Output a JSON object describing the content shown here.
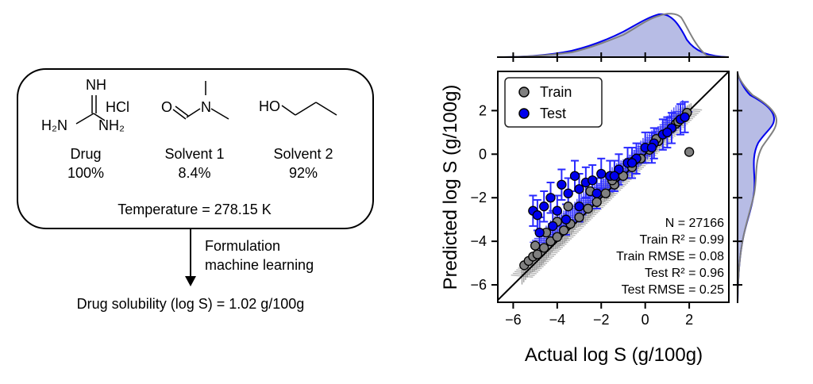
{
  "workflow": {
    "drug": {
      "label": "Drug",
      "percent": "100%",
      "structure": {
        "top": "NH",
        "hcl": "HCl",
        "left": "H₂N",
        "right": "NH₂"
      }
    },
    "solvent1": {
      "label": "Solvent 1",
      "percent": "8.4%",
      "structure": {
        "o": "O",
        "n": "N"
      }
    },
    "solvent2": {
      "label": "Solvent 2",
      "percent": "92%",
      "structure": {
        "ho": "HO"
      }
    },
    "temperature": "Temperature = 278.15 K",
    "model_line1": "Formulation",
    "model_line2": "machine learning",
    "prediction": "Drug solubility (log S) = 1.02 g/100g"
  },
  "chart_data": {
    "type": "scatter",
    "xlabel": "Actual log S (g/100g)",
    "ylabel": "Predicted log S (g/100g)",
    "xlim": [
      -6.7,
      3.8
    ],
    "ylim": [
      -6.8,
      3.8
    ],
    "xticks": [
      -6,
      -4,
      -2,
      0,
      2
    ],
    "yticks": [
      -6,
      -4,
      -2,
      0,
      2
    ],
    "legend": {
      "placement": "top-left",
      "entries": [
        "Train",
        "Test"
      ]
    },
    "series": [
      {
        "name": "Train",
        "color": "#808080",
        "x": [
          -5.5,
          -5.3,
          -5.1,
          -4.9,
          -4.6,
          -4.3,
          -4.0,
          -3.7,
          -3.4,
          -3.0,
          -2.6,
          -2.2,
          -1.8,
          -1.4,
          -1.0,
          -0.6,
          -0.2,
          0.2,
          0.6,
          1.0,
          1.4,
          1.8,
          2.0,
          -5.0,
          -4.5,
          -4.0,
          -3.5,
          -2.5,
          -1.5,
          -0.5,
          0.5,
          1.5,
          1.9
        ],
        "y": [
          -5.1,
          -4.9,
          -4.7,
          -4.6,
          -4.3,
          -4.0,
          -3.8,
          -3.5,
          -3.2,
          -2.9,
          -2.5,
          -2.2,
          -1.8,
          -1.4,
          -1.0,
          -0.6,
          -0.2,
          0.2,
          0.6,
          1.0,
          1.4,
          1.7,
          0.1,
          -4.2,
          -3.6,
          -3.1,
          -2.4,
          -1.7,
          -1.2,
          -0.3,
          0.7,
          1.5,
          1.9
        ]
      },
      {
        "name": "Test",
        "color": "#0000ee",
        "x": [
          -5.1,
          -4.9,
          -4.6,
          -4.3,
          -4.0,
          -3.8,
          -3.5,
          -3.2,
          -3.0,
          -2.7,
          -2.4,
          -2.0,
          -1.6,
          -1.2,
          -0.8,
          -0.4,
          0.0,
          0.4,
          0.8,
          1.2,
          1.6,
          -4.8,
          -4.2,
          -3.6,
          -3.0,
          -2.2,
          -1.4,
          -0.6,
          0.3,
          1.0,
          1.8
        ],
        "y": [
          -2.6,
          -2.8,
          -2.4,
          -2.0,
          -2.6,
          -1.4,
          -1.8,
          -1.0,
          -1.6,
          -1.3,
          -1.2,
          -0.9,
          -1.0,
          -0.7,
          -0.4,
          -0.2,
          0.3,
          0.5,
          0.9,
          1.2,
          1.6,
          -3.6,
          -3.3,
          -3.0,
          -2.4,
          -1.8,
          -1.0,
          -0.4,
          0.3,
          1.0,
          1.7
        ]
      }
    ],
    "annotations": [
      "N = 27166",
      "Train R² = 0.99",
      "Train RMSE = 0.08",
      "Test R² = 0.96",
      "Test RMSE = 0.25"
    ],
    "marginal": {
      "top": "density of Actual log S",
      "right": "density of Predicted log S"
    }
  },
  "colors": {
    "train": "#808080",
    "test": "#0000ee",
    "test_fill": "#aab0e0",
    "test_err": "#2a2aff"
  }
}
